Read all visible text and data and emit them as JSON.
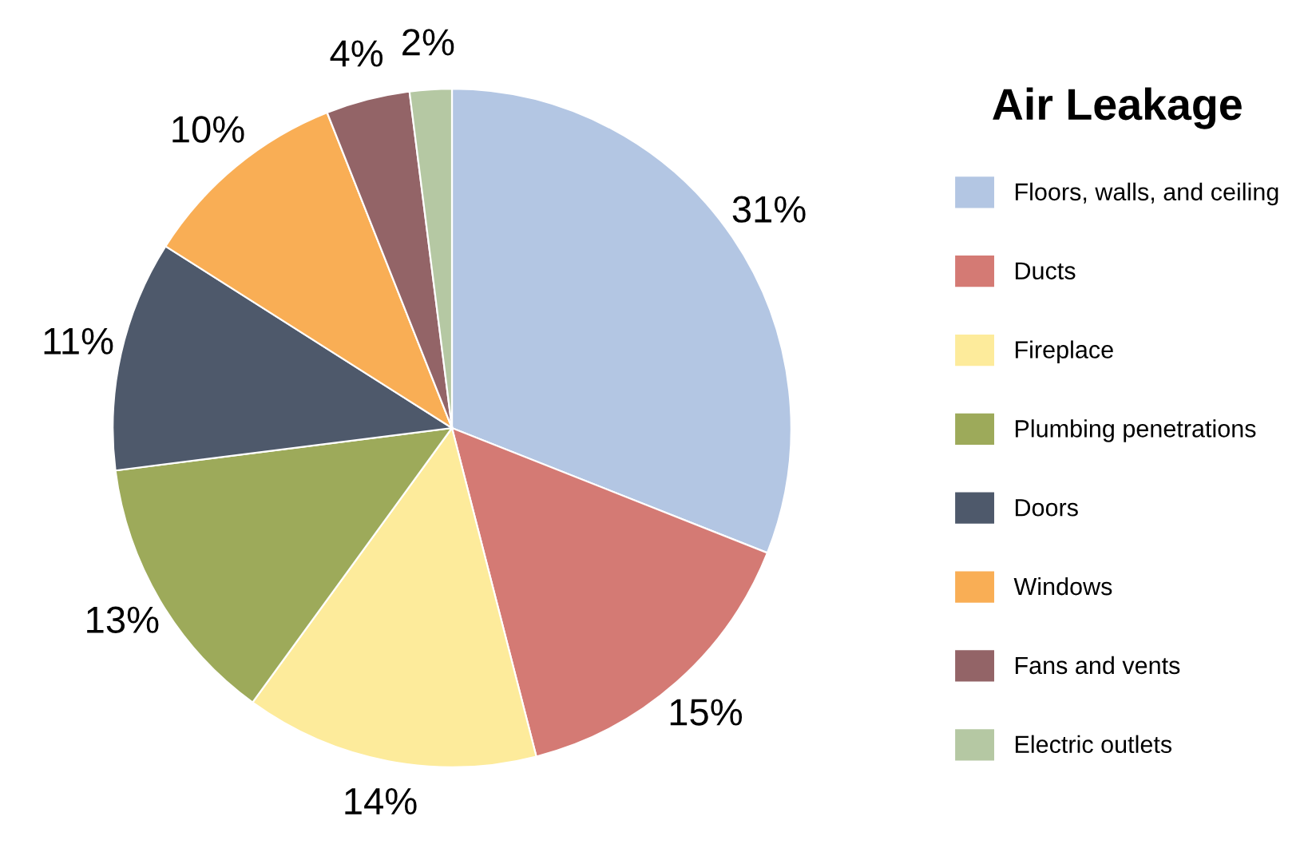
{
  "chart_data": {
    "type": "pie",
    "legend_title": "Air Leakage",
    "legend": "right",
    "categories": [
      "Floors, walls, and ceiling",
      "Ducts",
      "Fireplace",
      "Plumbing penetrations",
      "Doors",
      "Windows",
      "Fans and vents",
      "Electric outlets"
    ],
    "values": [
      31,
      15,
      14,
      13,
      11,
      10,
      4,
      2
    ],
    "value_labels": [
      "31%",
      "15%",
      "14%",
      "13%",
      "11%",
      "10%",
      "4%",
      "2%"
    ],
    "colors": [
      "#b3c6e3",
      "#d47a74",
      "#fdeb9b",
      "#9daa5a",
      "#4e596b",
      "#f9ae55",
      "#936467",
      "#b5c8a3"
    ]
  }
}
